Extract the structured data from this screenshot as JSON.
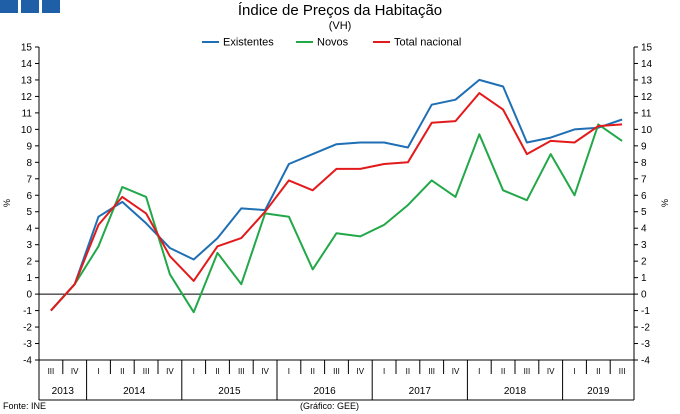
{
  "header": {
    "logo_icon": "gee-logo-blocks",
    "title": "Índice de Preços da Habitação",
    "subtitle": "(VH)"
  },
  "footer": {
    "source_left": "Fonte: INE",
    "source_mid": "(Gráfico: GEE)"
  },
  "colors": {
    "Existentes": "#1f6fb5",
    "Novos": "#22a848",
    "Total nacional": "#e31a1c",
    "logo": "#1f5fa8"
  },
  "chart_data": {
    "type": "line",
    "title": "Índice de Preços da Habitação",
    "subtitle": "(VH)",
    "ylabel_left": "%",
    "ylabel_right": "%",
    "ylim": [
      -4,
      15
    ],
    "yticks": [
      -4,
      -3,
      -2,
      -1,
      0,
      1,
      2,
      3,
      4,
      5,
      6,
      7,
      8,
      9,
      10,
      11,
      12,
      13,
      14,
      15
    ],
    "grid": false,
    "legend_position": "top",
    "categories": [
      "III",
      "IV",
      "I",
      "II",
      "III",
      "IV",
      "I",
      "II",
      "III",
      "IV",
      "I",
      "II",
      "III",
      "IV",
      "I",
      "II",
      "III",
      "IV",
      "I",
      "II",
      "III",
      "IV",
      "I",
      "II",
      "III"
    ],
    "years": [
      {
        "label": "2013",
        "count": 2
      },
      {
        "label": "2014",
        "count": 4
      },
      {
        "label": "2015",
        "count": 4
      },
      {
        "label": "2016",
        "count": 4
      },
      {
        "label": "2017",
        "count": 4
      },
      {
        "label": "2018",
        "count": 4
      },
      {
        "label": "2019",
        "count": 3
      }
    ],
    "series": [
      {
        "name": "Existentes",
        "values": [
          -1.0,
          0.6,
          4.7,
          5.6,
          4.3,
          2.8,
          2.1,
          3.4,
          5.2,
          5.1,
          7.9,
          8.5,
          9.1,
          9.2,
          9.2,
          8.9,
          11.5,
          11.8,
          13.0,
          12.6,
          9.2,
          9.5,
          10.0,
          10.1,
          10.6
        ]
      },
      {
        "name": "Novos",
        "values": [
          -1.0,
          0.6,
          2.9,
          6.5,
          5.9,
          1.2,
          -1.1,
          2.5,
          0.6,
          4.9,
          4.7,
          1.5,
          3.7,
          3.5,
          4.2,
          5.4,
          6.9,
          5.9,
          9.7,
          6.3,
          5.7,
          8.5,
          6.0,
          10.3,
          9.3
        ]
      },
      {
        "name": "Total nacional",
        "values": [
          -1.0,
          0.6,
          4.2,
          5.9,
          4.9,
          2.3,
          0.8,
          2.9,
          3.4,
          5.0,
          6.9,
          6.3,
          7.6,
          7.6,
          7.9,
          8.0,
          10.4,
          10.5,
          12.2,
          11.2,
          8.5,
          9.3,
          9.2,
          10.2,
          10.3
        ]
      }
    ]
  }
}
